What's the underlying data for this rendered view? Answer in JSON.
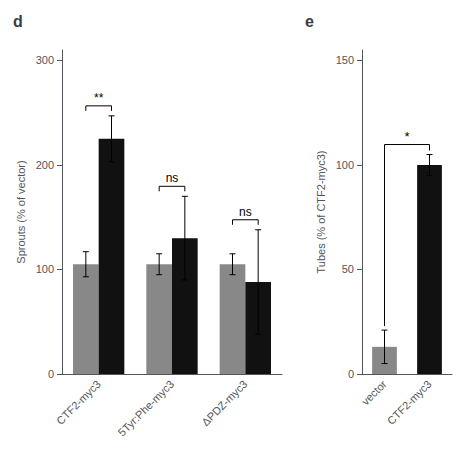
{
  "chart_data": [
    {
      "type": "bar",
      "title": "d",
      "categories": [
        "CTF2-myc3",
        "5Tyr:Phe-myc3",
        "ΔPDZ-myc3"
      ],
      "series": [
        {
          "color": "#888888",
          "values": [
            105,
            105,
            105
          ],
          "errors": [
            12,
            10,
            10
          ]
        },
        {
          "color": "#111111",
          "values": [
            225,
            130,
            88
          ],
          "errors": [
            22,
            40,
            50
          ]
        }
      ],
      "ylabel": "Sprouts (% of vector)",
      "ylim": [
        0,
        310
      ],
      "yticks": [
        0,
        100,
        200,
        300
      ],
      "grid": false,
      "annotations": [
        "**",
        "ns",
        "ns"
      ]
    },
    {
      "type": "bar",
      "title": "e",
      "categories": [
        "vector",
        "CTF2-myc3"
      ],
      "values": [
        13,
        100
      ],
      "errors": [
        8,
        5
      ],
      "colors": [
        "#888888",
        "#111111"
      ],
      "ylabel": "Tubes (% of CTF2-myc3)",
      "ylim": [
        0,
        155
      ],
      "yticks": [
        0,
        50,
        100,
        150
      ],
      "grid": false,
      "annotations": [
        "*"
      ]
    }
  ]
}
